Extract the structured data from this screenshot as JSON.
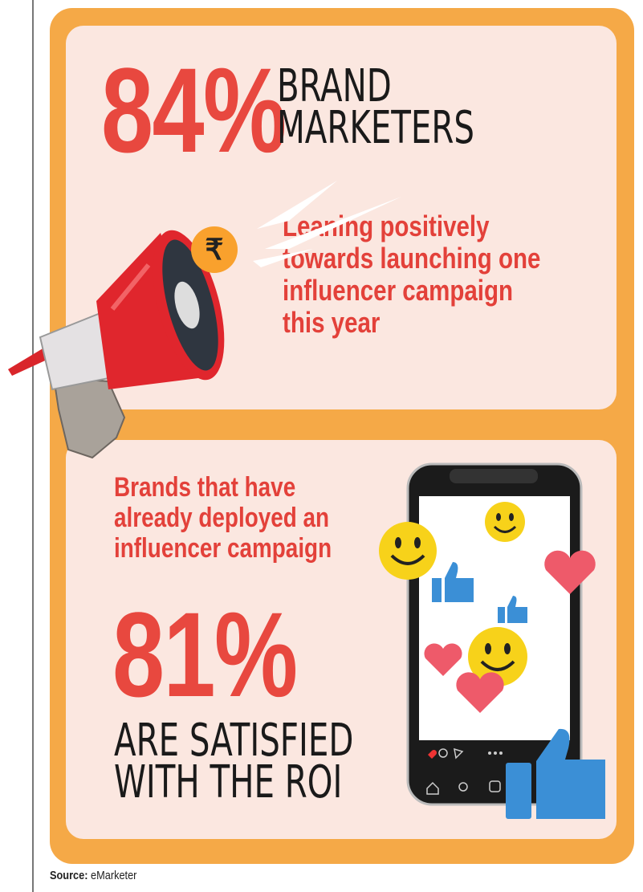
{
  "top": {
    "stat": "84%",
    "stat_label_line1": "BRAND",
    "stat_label_line2": "MARKETERS",
    "description_lines": [
      "Leaning positively",
      "towards launching one",
      "influencer campaign",
      "this year"
    ],
    "rupee_symbol": "₹"
  },
  "bottom": {
    "description_lines": [
      "Brands that have",
      "already deployed an",
      "influencer campaign"
    ],
    "stat": "81%",
    "stat_label_line1": "ARE SATISFIED",
    "stat_label_line2": "WITH THE ROI"
  },
  "source": {
    "label": "Source:",
    "value": "eMarketer"
  },
  "colors": {
    "accent_red": "#e8483f",
    "frame_orange": "#f5a947",
    "panel_pink": "#fbe7e0",
    "emoji_yellow": "#f7d21a",
    "like_blue": "#3b8fd6",
    "heart_pink": "#ee5a6a"
  },
  "icons": [
    "megaphone-icon",
    "rupee-coin-icon",
    "smartphone-icon",
    "smiley-icon",
    "thumbs-up-icon",
    "heart-icon"
  ]
}
